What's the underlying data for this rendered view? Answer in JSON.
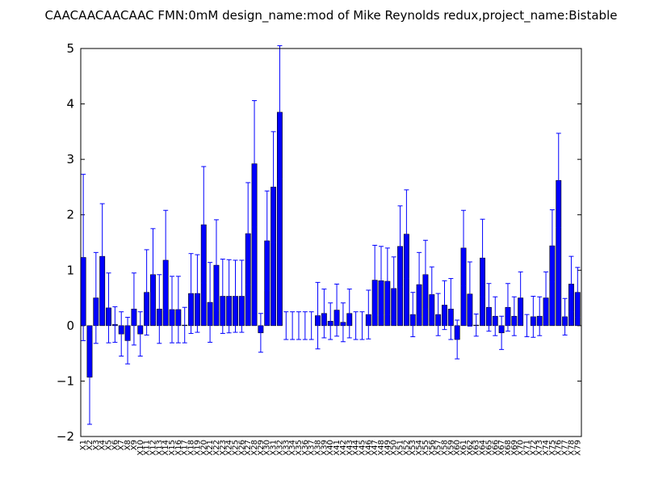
{
  "chart_data": {
    "type": "bar",
    "title": "CAACAACAACAAC  FMN:0mM  design_name:mod of Mike Reynolds redux,project_name:Bistable",
    "categories": [
      "X1",
      "X2",
      "X3",
      "X4",
      "X5",
      "X6",
      "X7",
      "X8",
      "X9",
      "X10",
      "X11",
      "X12",
      "X13",
      "X14",
      "X15",
      "X16",
      "X17",
      "X18",
      "X19",
      "X20",
      "X21",
      "X22",
      "X23",
      "X24",
      "X25",
      "X26",
      "X27",
      "X28",
      "X29",
      "X30",
      "X31",
      "X32",
      "X33",
      "X34",
      "X35",
      "X36",
      "X37",
      "X38",
      "X39",
      "X40",
      "X41",
      "X42",
      "X43",
      "X44",
      "X45",
      "X46",
      "X47",
      "X48",
      "X49",
      "X50",
      "X51",
      "X52",
      "X53",
      "X54",
      "X55",
      "X56",
      "X57",
      "X58",
      "X59",
      "X60",
      "X61",
      "X62",
      "X63",
      "X64",
      "X65",
      "X66",
      "X67",
      "X68",
      "X69",
      "X70",
      "X71",
      "X72",
      "X73",
      "X74",
      "X75",
      "X76",
      "X77",
      "X78",
      "X79"
    ],
    "values": [
      1.23,
      -0.93,
      0.5,
      1.25,
      0.32,
      0.02,
      -0.15,
      -0.27,
      0.3,
      -0.15,
      0.6,
      0.92,
      0.3,
      1.18,
      0.29,
      0.29,
      0.01,
      0.58,
      0.58,
      1.82,
      0.42,
      1.09,
      0.53,
      0.53,
      0.53,
      0.53,
      1.66,
      2.92,
      -0.13,
      1.53,
      2.5,
      3.85,
      0,
      0,
      0,
      0,
      0,
      0.18,
      0.22,
      0.08,
      0.28,
      0.06,
      0.22,
      0,
      0,
      0.2,
      0.82,
      0.81,
      0.8,
      0.67,
      1.43,
      1.65,
      0.2,
      0.74,
      0.92,
      0.56,
      0.2,
      0.37,
      0.3,
      -0.25,
      1.4,
      0.57,
      0.01,
      1.22,
      0.33,
      0.17,
      -0.13,
      0.33,
      0.17,
      0.5,
      0,
      0.16,
      0.17,
      0.5,
      1.44,
      2.62,
      0.16,
      0.75,
      0.6
    ],
    "errors": [
      1.5,
      0.85,
      0.82,
      0.95,
      0.63,
      0.32,
      0.4,
      0.42,
      0.65,
      0.4,
      0.77,
      0.83,
      0.62,
      0.9,
      0.6,
      0.6,
      0.32,
      0.72,
      0.7,
      1.05,
      0.72,
      0.82,
      0.67,
      0.66,
      0.65,
      0.65,
      0.92,
      1.14,
      0.35,
      0.9,
      1.0,
      1.2,
      0.25,
      0.25,
      0.25,
      0.25,
      0.25,
      0.6,
      0.44,
      0.33,
      0.47,
      0.35,
      0.44,
      0.25,
      0.25,
      0.44,
      0.63,
      0.62,
      0.6,
      0.57,
      0.73,
      0.8,
      0.4,
      0.58,
      0.62,
      0.5,
      0.38,
      0.44,
      0.55,
      0.35,
      0.68,
      0.58,
      0.2,
      0.7,
      0.43,
      0.35,
      0.3,
      0.43,
      0.35,
      0.47,
      0.2,
      0.37,
      0.35,
      0.47,
      0.65,
      0.85,
      0.33,
      0.5,
      0.45
    ],
    "color": "#0000ff",
    "error_color": "#0000ff",
    "ylim": [
      -2,
      5
    ],
    "yticks": [
      {
        "value": -2,
        "label": "−2"
      },
      {
        "value": -1,
        "label": "−1"
      },
      0,
      1,
      2,
      3,
      4,
      5
    ]
  }
}
